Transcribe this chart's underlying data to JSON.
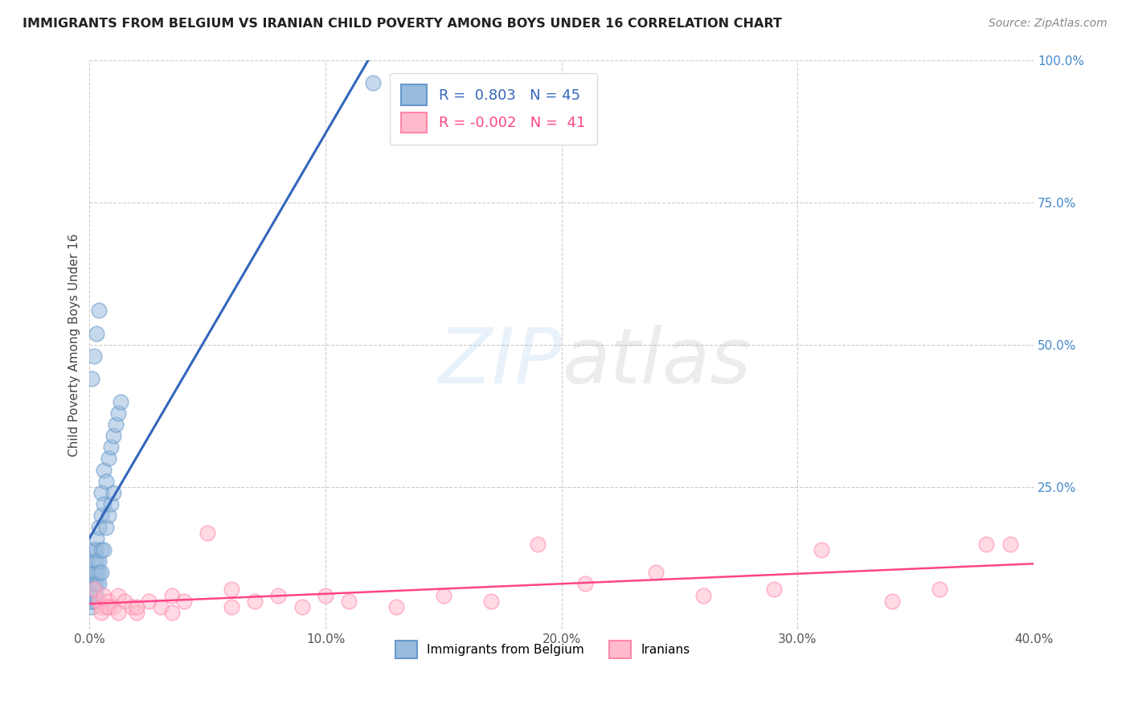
{
  "title": "IMMIGRANTS FROM BELGIUM VS IRANIAN CHILD POVERTY AMONG BOYS UNDER 16 CORRELATION CHART",
  "source": "Source: ZipAtlas.com",
  "ylabel": "Child Poverty Among Boys Under 16",
  "xlim": [
    0.0,
    0.4
  ],
  "ylim": [
    0.0,
    1.0
  ],
  "xticks": [
    0.0,
    0.1,
    0.2,
    0.3,
    0.4
  ],
  "xtick_labels": [
    "0.0%",
    "10.0%",
    "20.0%",
    "30.0%",
    "40.0%"
  ],
  "yticks": [
    0.0,
    0.25,
    0.5,
    0.75,
    1.0
  ],
  "ytick_labels": [
    "",
    "25.0%",
    "50.0%",
    "75.0%",
    "100.0%"
  ],
  "blue_R": 0.803,
  "blue_N": 45,
  "pink_R": -0.002,
  "pink_N": 41,
  "blue_fill": "#99BBDD",
  "blue_edge": "#6699CC",
  "pink_fill": "#FFBBCC",
  "pink_edge": "#FF88AA",
  "blue_trend_color": "#3366BB",
  "pink_trend_color": "#FF4488",
  "blue_scatter_x": [
    0.001,
    0.001,
    0.001,
    0.001,
    0.001,
    0.002,
    0.002,
    0.002,
    0.002,
    0.002,
    0.002,
    0.002,
    0.003,
    0.003,
    0.003,
    0.003,
    0.003,
    0.003,
    0.004,
    0.004,
    0.004,
    0.004,
    0.005,
    0.005,
    0.005,
    0.005,
    0.006,
    0.006,
    0.006,
    0.007,
    0.007,
    0.008,
    0.008,
    0.009,
    0.009,
    0.01,
    0.01,
    0.011,
    0.012,
    0.013,
    0.001,
    0.002,
    0.003,
    0.004,
    0.12
  ],
  "blue_scatter_y": [
    0.04,
    0.05,
    0.06,
    0.07,
    0.08,
    0.05,
    0.06,
    0.07,
    0.08,
    0.1,
    0.12,
    0.14,
    0.06,
    0.08,
    0.1,
    0.12,
    0.14,
    0.16,
    0.08,
    0.1,
    0.12,
    0.18,
    0.1,
    0.14,
    0.2,
    0.24,
    0.14,
    0.22,
    0.28,
    0.18,
    0.26,
    0.2,
    0.3,
    0.22,
    0.32,
    0.24,
    0.34,
    0.36,
    0.38,
    0.4,
    0.44,
    0.48,
    0.52,
    0.56,
    0.96
  ],
  "pink_scatter_x": [
    0.002,
    0.004,
    0.005,
    0.006,
    0.007,
    0.008,
    0.01,
    0.012,
    0.015,
    0.018,
    0.02,
    0.025,
    0.03,
    0.035,
    0.04,
    0.05,
    0.06,
    0.07,
    0.08,
    0.09,
    0.1,
    0.11,
    0.13,
    0.15,
    0.17,
    0.19,
    0.21,
    0.24,
    0.26,
    0.29,
    0.31,
    0.34,
    0.36,
    0.38,
    0.39,
    0.005,
    0.008,
    0.012,
    0.02,
    0.035,
    0.06
  ],
  "pink_scatter_y": [
    0.07,
    0.05,
    0.04,
    0.06,
    0.04,
    0.05,
    0.04,
    0.06,
    0.05,
    0.04,
    0.03,
    0.05,
    0.04,
    0.06,
    0.05,
    0.17,
    0.07,
    0.05,
    0.06,
    0.04,
    0.06,
    0.05,
    0.04,
    0.06,
    0.05,
    0.15,
    0.08,
    0.1,
    0.06,
    0.07,
    0.14,
    0.05,
    0.07,
    0.15,
    0.15,
    0.03,
    0.04,
    0.03,
    0.04,
    0.03,
    0.04
  ]
}
